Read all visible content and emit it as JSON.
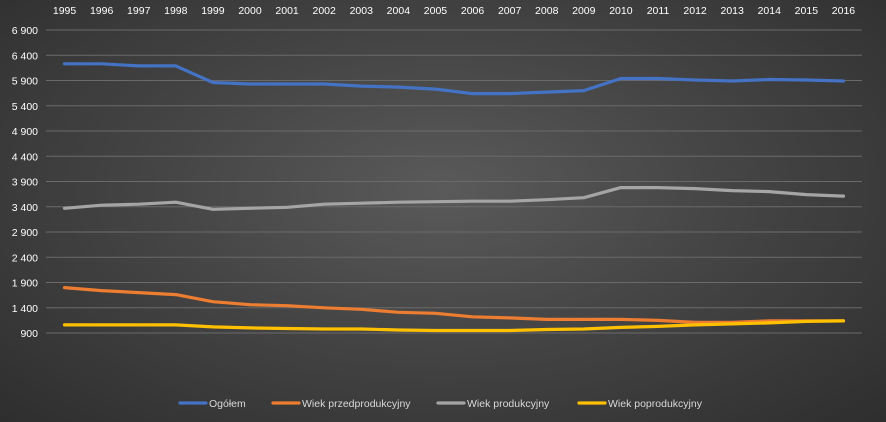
{
  "chart_data": {
    "type": "line",
    "title": "",
    "xlabel": "",
    "ylabel": "",
    "x": [
      "1995",
      "1996",
      "1997",
      "1998",
      "1999",
      "2000",
      "2001",
      "2002",
      "2003",
      "2004",
      "2005",
      "2006",
      "2007",
      "2008",
      "2009",
      "2010",
      "2011",
      "2012",
      "2013",
      "2014",
      "2015",
      "2016"
    ],
    "x_axis_position": "top",
    "y_ticks": [
      "6 900",
      "6 400",
      "5 900",
      "5 400",
      "4 900",
      "4 400",
      "3 900",
      "3 400",
      "2 900",
      "2 400",
      "1 900",
      "1 400",
      "900"
    ],
    "ylim": [
      900,
      6900
    ],
    "grid": true,
    "legend_position": "bottom",
    "series": [
      {
        "name": "Ogółem",
        "color": "#4472C4",
        "values": [
          6230,
          6230,
          6190,
          6190,
          5860,
          5830,
          5830,
          5830,
          5790,
          5770,
          5730,
          5640,
          5640,
          5670,
          5700,
          5940,
          5940,
          5910,
          5890,
          5920,
          5910,
          5890
        ]
      },
      {
        "name": "Wiek przedprodukcyjny",
        "color": "#ED7D31",
        "values": [
          1800,
          1740,
          1700,
          1660,
          1520,
          1460,
          1440,
          1400,
          1370,
          1310,
          1290,
          1220,
          1200,
          1170,
          1170,
          1170,
          1150,
          1110,
          1110,
          1140,
          1140,
          1140
        ]
      },
      {
        "name": "Wiek produkcyjny",
        "color": "#A5A5A5",
        "values": [
          3370,
          3430,
          3450,
          3490,
          3350,
          3370,
          3390,
          3450,
          3470,
          3490,
          3500,
          3510,
          3510,
          3540,
          3580,
          3780,
          3780,
          3760,
          3720,
          3700,
          3640,
          3610
        ]
      },
      {
        "name": "Wiek poprodukcyjny",
        "color": "#FFC000",
        "values": [
          1060,
          1060,
          1060,
          1060,
          1020,
          1000,
          990,
          980,
          980,
          960,
          950,
          950,
          950,
          970,
          980,
          1010,
          1030,
          1060,
          1080,
          1100,
          1130,
          1140
        ]
      }
    ]
  }
}
